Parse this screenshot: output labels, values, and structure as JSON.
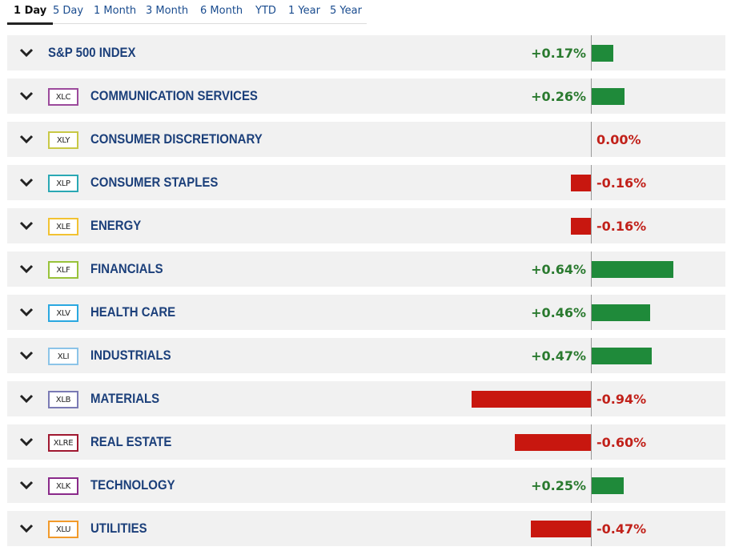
{
  "tabs": [
    {
      "label": "1 Day",
      "active": true
    },
    {
      "label": "5 Day",
      "active": false
    },
    {
      "label": "1 Month",
      "active": false
    },
    {
      "label": "3 Month",
      "active": false
    },
    {
      "label": "6 Month",
      "active": false
    },
    {
      "label": "YTD",
      "active": false
    },
    {
      "label": "1 Year",
      "active": false
    },
    {
      "label": "5 Year",
      "active": false
    }
  ],
  "colors": {
    "positive_bar": "#1f8a3a",
    "negative_bar": "#c8170f",
    "positive_text": "#2a7a2f",
    "negative_text": "#c1211a",
    "row_background": "#f1f1f1",
    "name_text": "#1b3f7a"
  },
  "rows": [
    {
      "ticker": "",
      "ticker_color": "",
      "name": "S&P 500 INDEX",
      "change": 0.17,
      "change_label": "+0.17%"
    },
    {
      "ticker": "XLC",
      "ticker_color": "#9c4a9c",
      "name": "COMMUNICATION SERVICES",
      "change": 0.26,
      "change_label": "+0.26%"
    },
    {
      "ticker": "XLY",
      "ticker_color": "#c8c846",
      "name": "CONSUMER DISCRETIONARY",
      "change": 0.0,
      "change_label": "0.00%"
    },
    {
      "ticker": "XLP",
      "ticker_color": "#2aa8b4",
      "name": "CONSUMER STAPLES",
      "change": -0.16,
      "change_label": "-0.16%"
    },
    {
      "ticker": "XLE",
      "ticker_color": "#f2c232",
      "name": "ENERGY",
      "change": -0.16,
      "change_label": "-0.16%"
    },
    {
      "ticker": "XLF",
      "ticker_color": "#98c23a",
      "name": "FINANCIALS",
      "change": 0.64,
      "change_label": "+0.64%"
    },
    {
      "ticker": "XLV",
      "ticker_color": "#2aa8e0",
      "name": "HEALTH CARE",
      "change": 0.46,
      "change_label": "+0.46%"
    },
    {
      "ticker": "XLI",
      "ticker_color": "#8cc4e8",
      "name": "INDUSTRIALS",
      "change": 0.47,
      "change_label": "+0.47%"
    },
    {
      "ticker": "XLB",
      "ticker_color": "#7a7ab4",
      "name": "MATERIALS",
      "change": -0.94,
      "change_label": "-0.94%"
    },
    {
      "ticker": "XLRE",
      "ticker_color": "#a01830",
      "name": "REAL ESTATE",
      "change": -0.6,
      "change_label": "-0.60%"
    },
    {
      "ticker": "XLK",
      "ticker_color": "#8a2a8a",
      "name": "TECHNOLOGY",
      "change": 0.25,
      "change_label": "+0.25%"
    },
    {
      "ticker": "XLU",
      "ticker_color": "#f29a2a",
      "name": "UTILITIES",
      "change": -0.47,
      "change_label": "-0.47%"
    }
  ],
  "icons": {
    "row_expand": "chevron-down-icon"
  }
}
